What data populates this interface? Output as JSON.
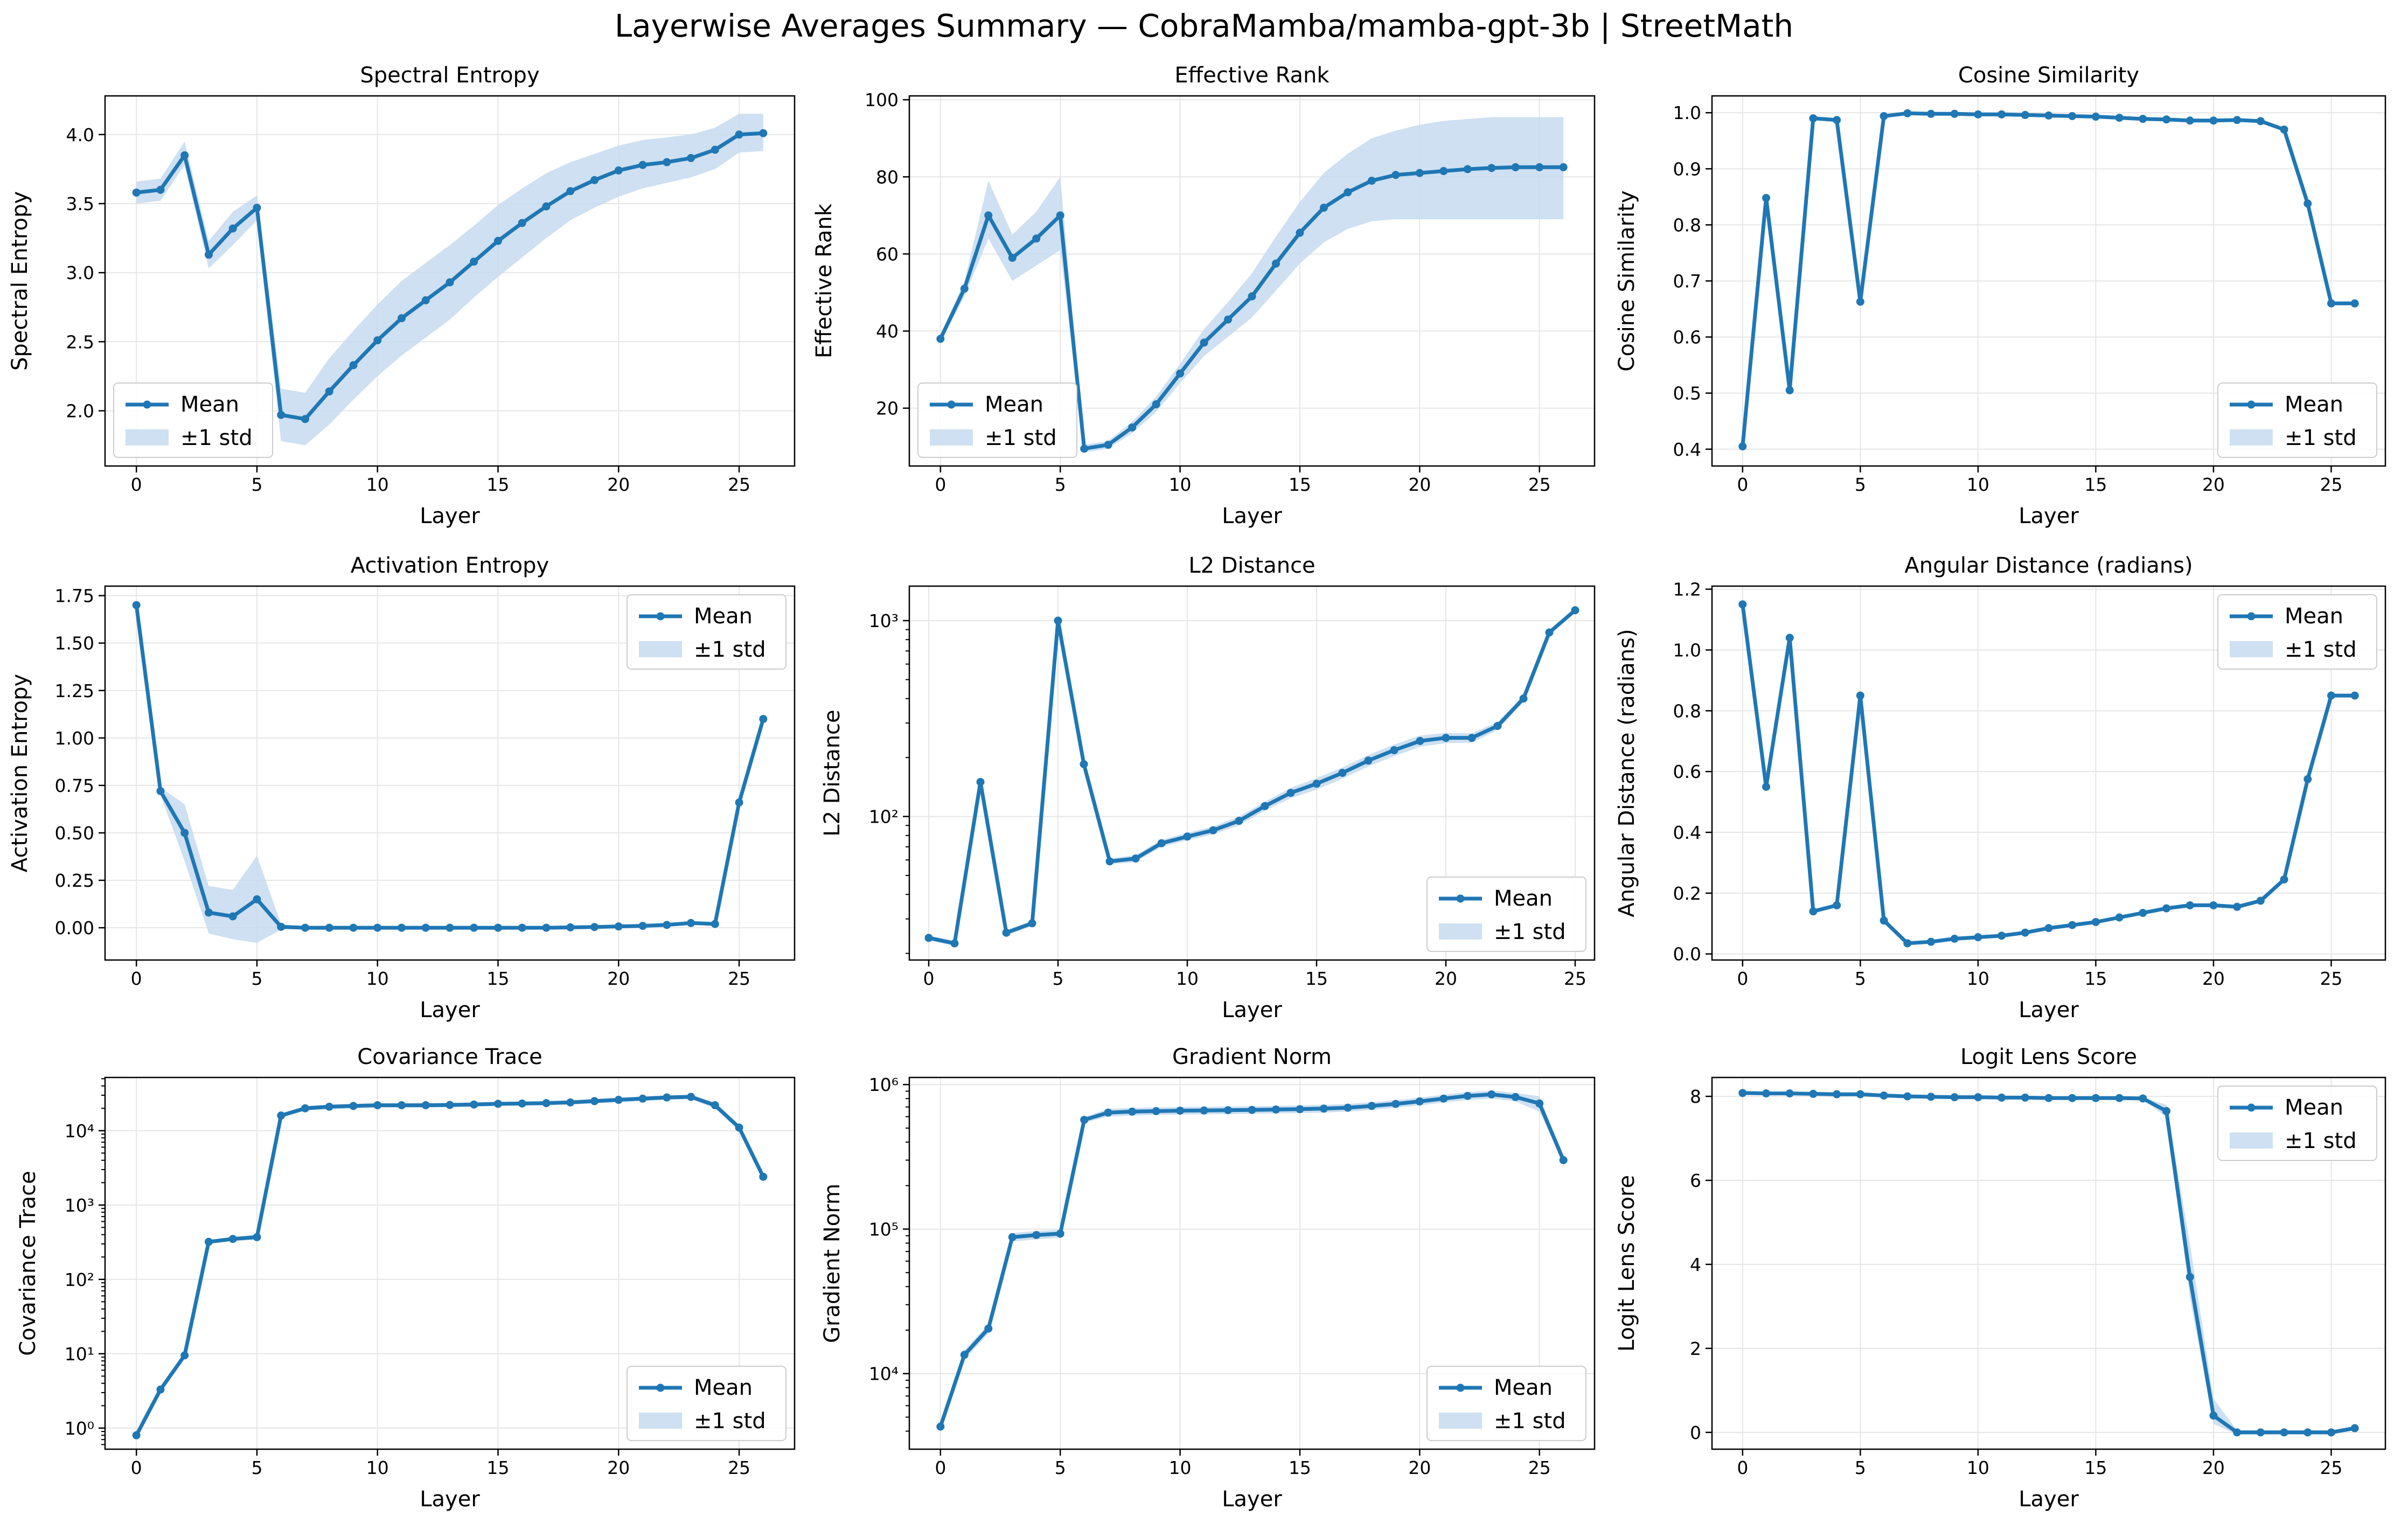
{
  "figure": {
    "title": "Layerwise Averages Summary — CobraMamba/mamba-gpt-3b | StreetMath",
    "series_color": "#1f77b4",
    "band_color": "#c6dbef",
    "legend_labels": [
      "Mean",
      "±1 std"
    ]
  },
  "chart_data": [
    {
      "type": "line",
      "title": "Spectral Entropy",
      "xlabel": "Layer",
      "ylabel": "Spectral Entropy",
      "scale": "linear",
      "xlim": [
        -1.3,
        27.3
      ],
      "ylim": [
        1.6,
        4.28
      ],
      "xticks": [
        0,
        5,
        10,
        15,
        20,
        25
      ],
      "yticks": [
        2.0,
        2.5,
        3.0,
        3.5,
        4.0
      ],
      "ytick_labels": [
        "2.0",
        "2.5",
        "3.0",
        "3.5",
        "4.0"
      ],
      "legend": "lower-left",
      "x": [
        0,
        1,
        2,
        3,
        4,
        5,
        6,
        7,
        8,
        9,
        10,
        11,
        12,
        13,
        14,
        15,
        16,
        17,
        18,
        19,
        20,
        21,
        22,
        23,
        24,
        25,
        26
      ],
      "mean": [
        3.58,
        3.6,
        3.85,
        3.13,
        3.32,
        3.47,
        1.97,
        1.94,
        2.14,
        2.33,
        2.51,
        2.67,
        2.8,
        2.93,
        3.08,
        3.23,
        3.36,
        3.48,
        3.59,
        3.67,
        3.74,
        3.78,
        3.8,
        3.83,
        3.89,
        4.0,
        4.01
      ],
      "lower": [
        3.5,
        3.52,
        3.78,
        3.03,
        3.2,
        3.38,
        1.78,
        1.75,
        1.9,
        2.08,
        2.25,
        2.4,
        2.53,
        2.66,
        2.82,
        2.97,
        3.11,
        3.25,
        3.38,
        3.47,
        3.55,
        3.61,
        3.65,
        3.69,
        3.75,
        3.87,
        3.88
      ],
      "upper": [
        3.66,
        3.68,
        3.95,
        3.23,
        3.44,
        3.56,
        2.16,
        2.13,
        2.38,
        2.58,
        2.77,
        2.94,
        3.07,
        3.2,
        3.34,
        3.49,
        3.61,
        3.72,
        3.8,
        3.86,
        3.92,
        3.96,
        3.98,
        4.0,
        4.05,
        4.15,
        4.15
      ]
    },
    {
      "type": "line",
      "title": "Effective Rank",
      "xlabel": "Layer",
      "ylabel": "Effective Rank",
      "scale": "linear",
      "xlim": [
        -1.3,
        27.3
      ],
      "ylim": [
        5,
        101
      ],
      "xticks": [
        0,
        5,
        10,
        15,
        20,
        25
      ],
      "yticks": [
        20,
        40,
        60,
        80,
        100
      ],
      "ytick_labels": [
        "20",
        "40",
        "60",
        "80",
        "100"
      ],
      "legend": "lower-left",
      "x": [
        0,
        1,
        2,
        3,
        4,
        5,
        6,
        7,
        8,
        9,
        10,
        11,
        12,
        13,
        14,
        15,
        16,
        17,
        18,
        19,
        20,
        21,
        22,
        23,
        24,
        25,
        26
      ],
      "mean": [
        38,
        51,
        70,
        59,
        64,
        70,
        9.5,
        10.5,
        15,
        21,
        29,
        37,
        43,
        49,
        57.5,
        65.5,
        72,
        76,
        79,
        80.5,
        81,
        81.5,
        82,
        82.3,
        82.5,
        82.5,
        82.5
      ],
      "lower": [
        37,
        49,
        64,
        53,
        57,
        61,
        8.5,
        9.5,
        13.5,
        19,
        26.5,
        33.5,
        38.5,
        43.5,
        50.5,
        57.5,
        63,
        66.5,
        68.5,
        69,
        69,
        69,
        69,
        69,
        69,
        69,
        69
      ],
      "upper": [
        39,
        53,
        79,
        65,
        71,
        80,
        10.5,
        11.5,
        16.5,
        23,
        31.5,
        40.5,
        47.5,
        55,
        64.5,
        73.5,
        81,
        86,
        90,
        92,
        93.5,
        94.5,
        95,
        95.5,
        95.5,
        95.5,
        95.5
      ]
    },
    {
      "type": "line",
      "title": "Cosine Similarity",
      "xlabel": "Layer",
      "ylabel": "Cosine Similarity",
      "scale": "linear",
      "xlim": [
        -1.3,
        27.3
      ],
      "ylim": [
        0.37,
        1.03
      ],
      "xticks": [
        0,
        5,
        10,
        15,
        20,
        25
      ],
      "yticks": [
        0.4,
        0.5,
        0.6,
        0.7,
        0.8,
        0.9,
        1.0
      ],
      "ytick_labels": [
        "0.4",
        "0.5",
        "0.6",
        "0.7",
        "0.8",
        "0.9",
        "1.0"
      ],
      "legend": "lower-right",
      "x": [
        0,
        1,
        2,
        3,
        4,
        5,
        6,
        7,
        8,
        9,
        10,
        11,
        12,
        13,
        14,
        15,
        16,
        17,
        18,
        19,
        20,
        21,
        22,
        23,
        24,
        25,
        26
      ],
      "mean": [
        0.405,
        0.848,
        0.505,
        0.99,
        0.987,
        0.663,
        0.994,
        0.999,
        0.998,
        0.998,
        0.997,
        0.997,
        0.996,
        0.995,
        0.994,
        0.993,
        0.991,
        0.989,
        0.988,
        0.986,
        0.986,
        0.987,
        0.985,
        0.97,
        0.838,
        0.66,
        0.66
      ],
      "lower": [
        0.402,
        0.845,
        0.502,
        0.988,
        0.985,
        0.66,
        0.993,
        0.998,
        0.997,
        0.997,
        0.996,
        0.996,
        0.995,
        0.994,
        0.993,
        0.992,
        0.99,
        0.988,
        0.987,
        0.985,
        0.985,
        0.986,
        0.984,
        0.968,
        0.835,
        0.657,
        0.657
      ],
      "upper": [
        0.408,
        0.851,
        0.508,
        0.992,
        0.989,
        0.666,
        0.995,
        1.0,
        0.999,
        0.999,
        0.998,
        0.998,
        0.997,
        0.996,
        0.995,
        0.994,
        0.992,
        0.99,
        0.989,
        0.987,
        0.987,
        0.988,
        0.986,
        0.972,
        0.841,
        0.663,
        0.663
      ]
    },
    {
      "type": "line",
      "title": "Activation Entropy",
      "xlabel": "Layer",
      "ylabel": "Activation Entropy",
      "scale": "linear",
      "xlim": [
        -1.3,
        27.3
      ],
      "ylim": [
        -0.17,
        1.8
      ],
      "xticks": [
        0,
        5,
        10,
        15,
        20,
        25
      ],
      "yticks": [
        0.0,
        0.25,
        0.5,
        0.75,
        1.0,
        1.25,
        1.5,
        1.75
      ],
      "ytick_labels": [
        "0.00",
        "0.25",
        "0.50",
        "0.75",
        "1.00",
        "1.25",
        "1.50",
        "1.75"
      ],
      "legend": "upper-right",
      "x": [
        0,
        1,
        2,
        3,
        4,
        5,
        6,
        7,
        8,
        9,
        10,
        11,
        12,
        13,
        14,
        15,
        16,
        17,
        18,
        19,
        20,
        21,
        22,
        23,
        24,
        25,
        26
      ],
      "mean": [
        1.7,
        0.72,
        0.5,
        0.08,
        0.06,
        0.15,
        0.005,
        0.0,
        0.0,
        0.0,
        0.0,
        0.0,
        0.0,
        0.0,
        0.0,
        0.0,
        0.0,
        0.0,
        0.002,
        0.004,
        0.007,
        0.01,
        0.015,
        0.025,
        0.02,
        0.66,
        1.1
      ],
      "lower": [
        1.69,
        0.7,
        0.35,
        -0.03,
        -0.06,
        -0.08,
        -0.01,
        -0.005,
        -0.004,
        -0.004,
        -0.004,
        -0.004,
        -0.004,
        -0.004,
        -0.004,
        -0.004,
        -0.004,
        -0.004,
        -0.002,
        0.0,
        0.003,
        0.006,
        0.01,
        0.018,
        0.013,
        0.64,
        1.08
      ],
      "upper": [
        1.71,
        0.74,
        0.65,
        0.22,
        0.2,
        0.38,
        0.02,
        0.005,
        0.004,
        0.004,
        0.004,
        0.004,
        0.004,
        0.004,
        0.004,
        0.004,
        0.004,
        0.004,
        0.006,
        0.008,
        0.011,
        0.014,
        0.02,
        0.032,
        0.027,
        0.68,
        1.12
      ]
    },
    {
      "type": "line",
      "title": "L2 Distance",
      "xlabel": "Layer",
      "ylabel": "L2 Distance",
      "scale": "log",
      "xlim": [
        -0.75,
        25.75
      ],
      "ylim": [
        18.5,
        1500
      ],
      "xticks": [
        0,
        5,
        10,
        15,
        20,
        25
      ],
      "yticks": [
        100,
        1000
      ],
      "ytick_labels": [
        "10²",
        "10³"
      ],
      "legend": "lower-right",
      "x": [
        0,
        1,
        2,
        3,
        4,
        5,
        6,
        7,
        8,
        9,
        10,
        11,
        12,
        13,
        14,
        15,
        16,
        17,
        18,
        19,
        20,
        21,
        22,
        23,
        24,
        25
      ],
      "mean": [
        24,
        22.5,
        150,
        25.5,
        28.5,
        1000,
        185,
        59,
        61,
        73,
        79,
        85,
        95,
        113,
        132,
        147,
        167,
        193,
        218,
        243,
        252,
        252,
        290,
        400,
        870,
        1130
      ],
      "lower": [
        23.3,
        21.8,
        146,
        24.7,
        27.6,
        975,
        180,
        57,
        58.5,
        70,
        75.5,
        81,
        90,
        107,
        124,
        137,
        156,
        180,
        203,
        227,
        237,
        238,
        276,
        385,
        845,
        1100
      ],
      "upper": [
        24.7,
        23.2,
        154,
        26.3,
        29.4,
        1025,
        190,
        61,
        63.5,
        76,
        82.5,
        89,
        100,
        119,
        140,
        157,
        178,
        206,
        233,
        259,
        267,
        266,
        304,
        415,
        895,
        1160
      ]
    },
    {
      "type": "line",
      "title": "Angular Distance (radians)",
      "xlabel": "Layer",
      "ylabel": "Angular Distance (radians)",
      "scale": "linear",
      "xlim": [
        -1.3,
        27.3
      ],
      "ylim": [
        -0.02,
        1.21
      ],
      "xticks": [
        0,
        5,
        10,
        15,
        20,
        25
      ],
      "yticks": [
        0.0,
        0.2,
        0.4,
        0.6,
        0.8,
        1.0,
        1.2
      ],
      "ytick_labels": [
        "0.0",
        "0.2",
        "0.4",
        "0.6",
        "0.8",
        "1.0",
        "1.2"
      ],
      "legend": "upper-right",
      "x": [
        0,
        1,
        2,
        3,
        4,
        5,
        6,
        7,
        8,
        9,
        10,
        11,
        12,
        13,
        14,
        15,
        16,
        17,
        18,
        19,
        20,
        21,
        22,
        23,
        24,
        25,
        26
      ],
      "mean": [
        1.15,
        0.55,
        1.04,
        0.14,
        0.16,
        0.85,
        0.11,
        0.035,
        0.04,
        0.05,
        0.055,
        0.06,
        0.07,
        0.085,
        0.095,
        0.105,
        0.12,
        0.135,
        0.15,
        0.16,
        0.16,
        0.155,
        0.175,
        0.245,
        0.575,
        0.85,
        0.85
      ],
      "lower": [
        1.145,
        0.545,
        1.035,
        0.135,
        0.155,
        0.845,
        0.105,
        0.032,
        0.037,
        0.047,
        0.052,
        0.057,
        0.066,
        0.081,
        0.091,
        0.101,
        0.115,
        0.13,
        0.145,
        0.155,
        0.155,
        0.15,
        0.17,
        0.24,
        0.57,
        0.845,
        0.845
      ],
      "upper": [
        1.155,
        0.555,
        1.045,
        0.145,
        0.165,
        0.855,
        0.115,
        0.038,
        0.043,
        0.053,
        0.058,
        0.063,
        0.074,
        0.089,
        0.099,
        0.109,
        0.125,
        0.14,
        0.155,
        0.165,
        0.165,
        0.16,
        0.18,
        0.25,
        0.58,
        0.855,
        0.855
      ]
    },
    {
      "type": "line",
      "title": "Covariance Trace",
      "xlabel": "Layer",
      "ylabel": "Covariance Trace",
      "scale": "log",
      "xlim": [
        -1.3,
        27.3
      ],
      "ylim": [
        0.52,
        52000
      ],
      "xticks": [
        0,
        5,
        10,
        15,
        20,
        25
      ],
      "yticks": [
        1,
        10,
        100,
        1000,
        10000
      ],
      "ytick_labels": [
        "10⁰",
        "10¹",
        "10²",
        "10³",
        "10⁴"
      ],
      "legend": "lower-right",
      "x": [
        0,
        1,
        2,
        3,
        4,
        5,
        6,
        7,
        8,
        9,
        10,
        11,
        12,
        13,
        14,
        15,
        16,
        17,
        18,
        19,
        20,
        21,
        22,
        23,
        24,
        25,
        26
      ],
      "mean": [
        0.8,
        3.3,
        9.5,
        320,
        350,
        370,
        16000,
        20000,
        21000,
        21500,
        22000,
        22000,
        22000,
        22200,
        22500,
        23000,
        23200,
        23500,
        24000,
        25000,
        26000,
        27000,
        28000,
        28500,
        22000,
        11000,
        2400
      ],
      "lower": [
        0.78,
        3.2,
        9.2,
        300,
        330,
        340,
        15000,
        18500,
        19500,
        20000,
        20500,
        20500,
        20500,
        20700,
        21000,
        21500,
        21700,
        22000,
        22500,
        23300,
        24200,
        25100,
        26000,
        26500,
        20000,
        10000,
        2300
      ],
      "upper": [
        0.82,
        3.4,
        9.8,
        340,
        372,
        400,
        17000,
        21500,
        22500,
        23000,
        23500,
        23500,
        23500,
        23700,
        24000,
        24500,
        24700,
        25000,
        25500,
        26700,
        27800,
        28900,
        30000,
        30500,
        24000,
        12000,
        2500
      ]
    },
    {
      "type": "line",
      "title": "Gradient Norm",
      "xlabel": "Layer",
      "ylabel": "Gradient Norm",
      "scale": "log",
      "xlim": [
        -1.3,
        27.3
      ],
      "ylim": [
        3000,
        1120000
      ],
      "xticks": [
        0,
        5,
        10,
        15,
        20,
        25
      ],
      "yticks": [
        10000,
        100000,
        1000000
      ],
      "ytick_labels": [
        "10⁴",
        "10⁵",
        "10⁶"
      ],
      "legend": "lower-right",
      "x": [
        0,
        1,
        2,
        3,
        4,
        5,
        6,
        7,
        8,
        9,
        10,
        11,
        12,
        13,
        14,
        15,
        16,
        17,
        18,
        19,
        20,
        21,
        22,
        23,
        24,
        25,
        26
      ],
      "mean": [
        4300,
        13500,
        20500,
        88000,
        91000,
        93000,
        570000,
        640000,
        650000,
        655000,
        660000,
        662000,
        665000,
        668000,
        672000,
        676000,
        682000,
        692000,
        712000,
        735000,
        765000,
        800000,
        835000,
        855000,
        820000,
        740000,
        300000
      ],
      "lower": [
        4200,
        12500,
        19000,
        82000,
        85000,
        87000,
        545000,
        600000,
        610000,
        615000,
        620000,
        622000,
        625000,
        628000,
        631000,
        635000,
        640000,
        650000,
        668000,
        690000,
        718000,
        750000,
        782000,
        800000,
        765000,
        650000,
        290000
      ],
      "upper": [
        4400,
        14500,
        22000,
        94000,
        97000,
        99000,
        595000,
        680000,
        690000,
        695000,
        700000,
        702000,
        705000,
        708000,
        713000,
        717000,
        724000,
        734000,
        756000,
        780000,
        812000,
        850000,
        888000,
        910000,
        875000,
        830000,
        310000
      ]
    },
    {
      "type": "line",
      "title": "Logit Lens Score",
      "xlabel": "Layer",
      "ylabel": "Logit Lens Score",
      "scale": "linear",
      "xlim": [
        -1.3,
        27.3
      ],
      "ylim": [
        -0.4,
        8.45
      ],
      "xticks": [
        0,
        5,
        10,
        15,
        20,
        25
      ],
      "yticks": [
        0,
        2,
        4,
        6,
        8
      ],
      "ytick_labels": [
        "0",
        "2",
        "4",
        "6",
        "8"
      ],
      "legend": "upper-right",
      "x": [
        0,
        1,
        2,
        3,
        4,
        5,
        6,
        7,
        8,
        9,
        10,
        11,
        12,
        13,
        14,
        15,
        16,
        17,
        18,
        19,
        20,
        21,
        22,
        23,
        24,
        25,
        26
      ],
      "mean": [
        8.08,
        8.07,
        8.07,
        8.06,
        8.05,
        8.05,
        8.02,
        8.0,
        7.99,
        7.98,
        7.98,
        7.97,
        7.97,
        7.96,
        7.96,
        7.96,
        7.96,
        7.95,
        7.65,
        3.7,
        0.4,
        0.0,
        0.0,
        0.0,
        0.0,
        0.0,
        0.1
      ],
      "lower": [
        8.06,
        8.05,
        8.05,
        8.04,
        8.03,
        8.03,
        8.0,
        7.98,
        7.97,
        7.96,
        7.96,
        7.95,
        7.95,
        7.94,
        7.94,
        7.94,
        7.94,
        7.93,
        7.5,
        3.2,
        0.2,
        -0.05,
        -0.05,
        -0.05,
        -0.05,
        -0.05,
        0.05
      ],
      "upper": [
        8.1,
        8.09,
        8.09,
        8.08,
        8.07,
        8.07,
        8.04,
        8.02,
        8.01,
        8.0,
        8.0,
        7.99,
        7.99,
        7.98,
        7.98,
        7.98,
        7.98,
        7.97,
        7.8,
        4.5,
        0.8,
        0.05,
        0.05,
        0.05,
        0.05,
        0.05,
        0.15
      ]
    }
  ]
}
